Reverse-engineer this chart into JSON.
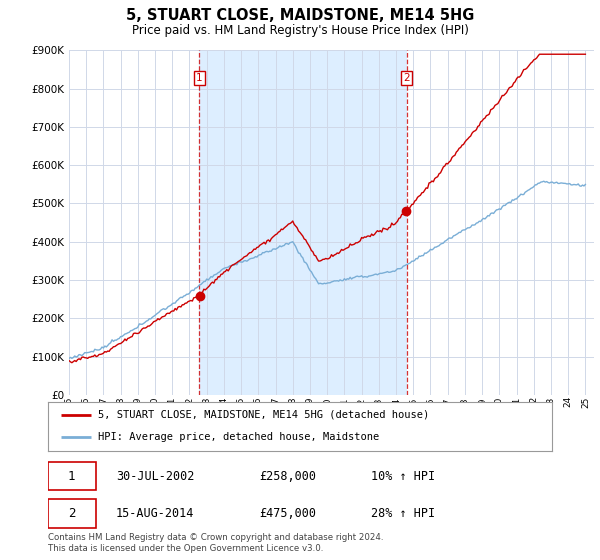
{
  "title": "5, STUART CLOSE, MAIDSTONE, ME14 5HG",
  "subtitle": "Price paid vs. HM Land Registry's House Price Index (HPI)",
  "background_color": "#ffffff",
  "plot_bg_color": "#ffffff",
  "shade_color": "#ddeeff",
  "grid_color": "#d0d8e8",
  "red_line_color": "#cc0000",
  "blue_line_color": "#7aaed6",
  "sale1_date_num": 2002.58,
  "sale2_date_num": 2014.62,
  "sale1_label": "30-JUL-2002",
  "sale1_price": "£258,000",
  "sale1_hpi": "10% ↑ HPI",
  "sale2_label": "15-AUG-2014",
  "sale2_price": "£475,000",
  "sale2_hpi": "28% ↑ HPI",
  "legend_line1": "5, STUART CLOSE, MAIDSTONE, ME14 5HG (detached house)",
  "legend_line2": "HPI: Average price, detached house, Maidstone",
  "footer": "Contains HM Land Registry data © Crown copyright and database right 2024.\nThis data is licensed under the Open Government Licence v3.0.",
  "xmin": 1995.0,
  "xmax": 2025.5,
  "ymin": 0,
  "ymax": 900000,
  "yticks": [
    0,
    100000,
    200000,
    300000,
    400000,
    500000,
    600000,
    700000,
    800000,
    900000
  ]
}
